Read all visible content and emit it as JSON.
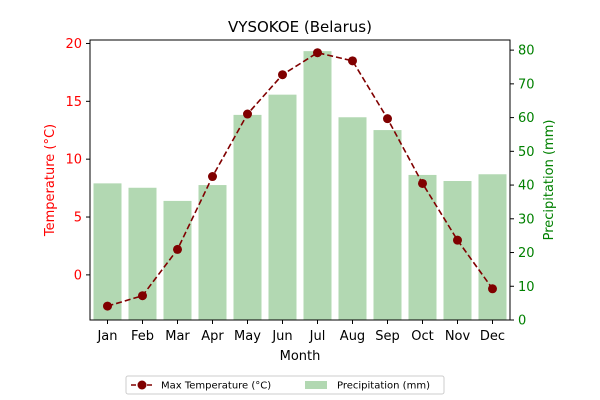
{
  "chart_data": {
    "type": "bar",
    "title": "VYSOKOE (Belarus)",
    "xlabel": "Month",
    "categories": [
      "Jan",
      "Feb",
      "Mar",
      "Apr",
      "May",
      "Jun",
      "Jul",
      "Aug",
      "Sep",
      "Oct",
      "Nov",
      "Dec"
    ],
    "y_left": {
      "label": "Temperature (°C)",
      "color": "#ff0000",
      "ylim": [
        -3.9,
        20.3
      ],
      "ticks": [
        0,
        5,
        10,
        15,
        20
      ]
    },
    "y_right": {
      "label": "Precipitation (mm)",
      "color": "#008000",
      "ylim": [
        0,
        83
      ],
      "ticks": [
        0,
        10,
        20,
        30,
        40,
        50,
        60,
        70,
        80
      ]
    },
    "series": [
      {
        "name": "Precipitation (mm)",
        "type": "bar",
        "axis": "right",
        "color": "#b2d8b2",
        "values": [
          40.5,
          39.2,
          35.3,
          40.0,
          60.8,
          66.8,
          79.7,
          60.1,
          56.3,
          43.0,
          41.2,
          43.2
        ]
      },
      {
        "name": "Max Temperature (°C)",
        "type": "line",
        "axis": "left",
        "color": "#800000",
        "line_style": "dashed",
        "marker": "circle",
        "values": [
          -2.7,
          -1.8,
          2.2,
          8.5,
          13.9,
          17.3,
          19.2,
          18.5,
          13.5,
          7.9,
          3.0,
          -1.2
        ]
      }
    ],
    "legend": {
      "placement": "bottom-center",
      "entries": [
        "Max Temperature (°C)",
        "Precipitation (mm)"
      ]
    },
    "grid": false
  }
}
